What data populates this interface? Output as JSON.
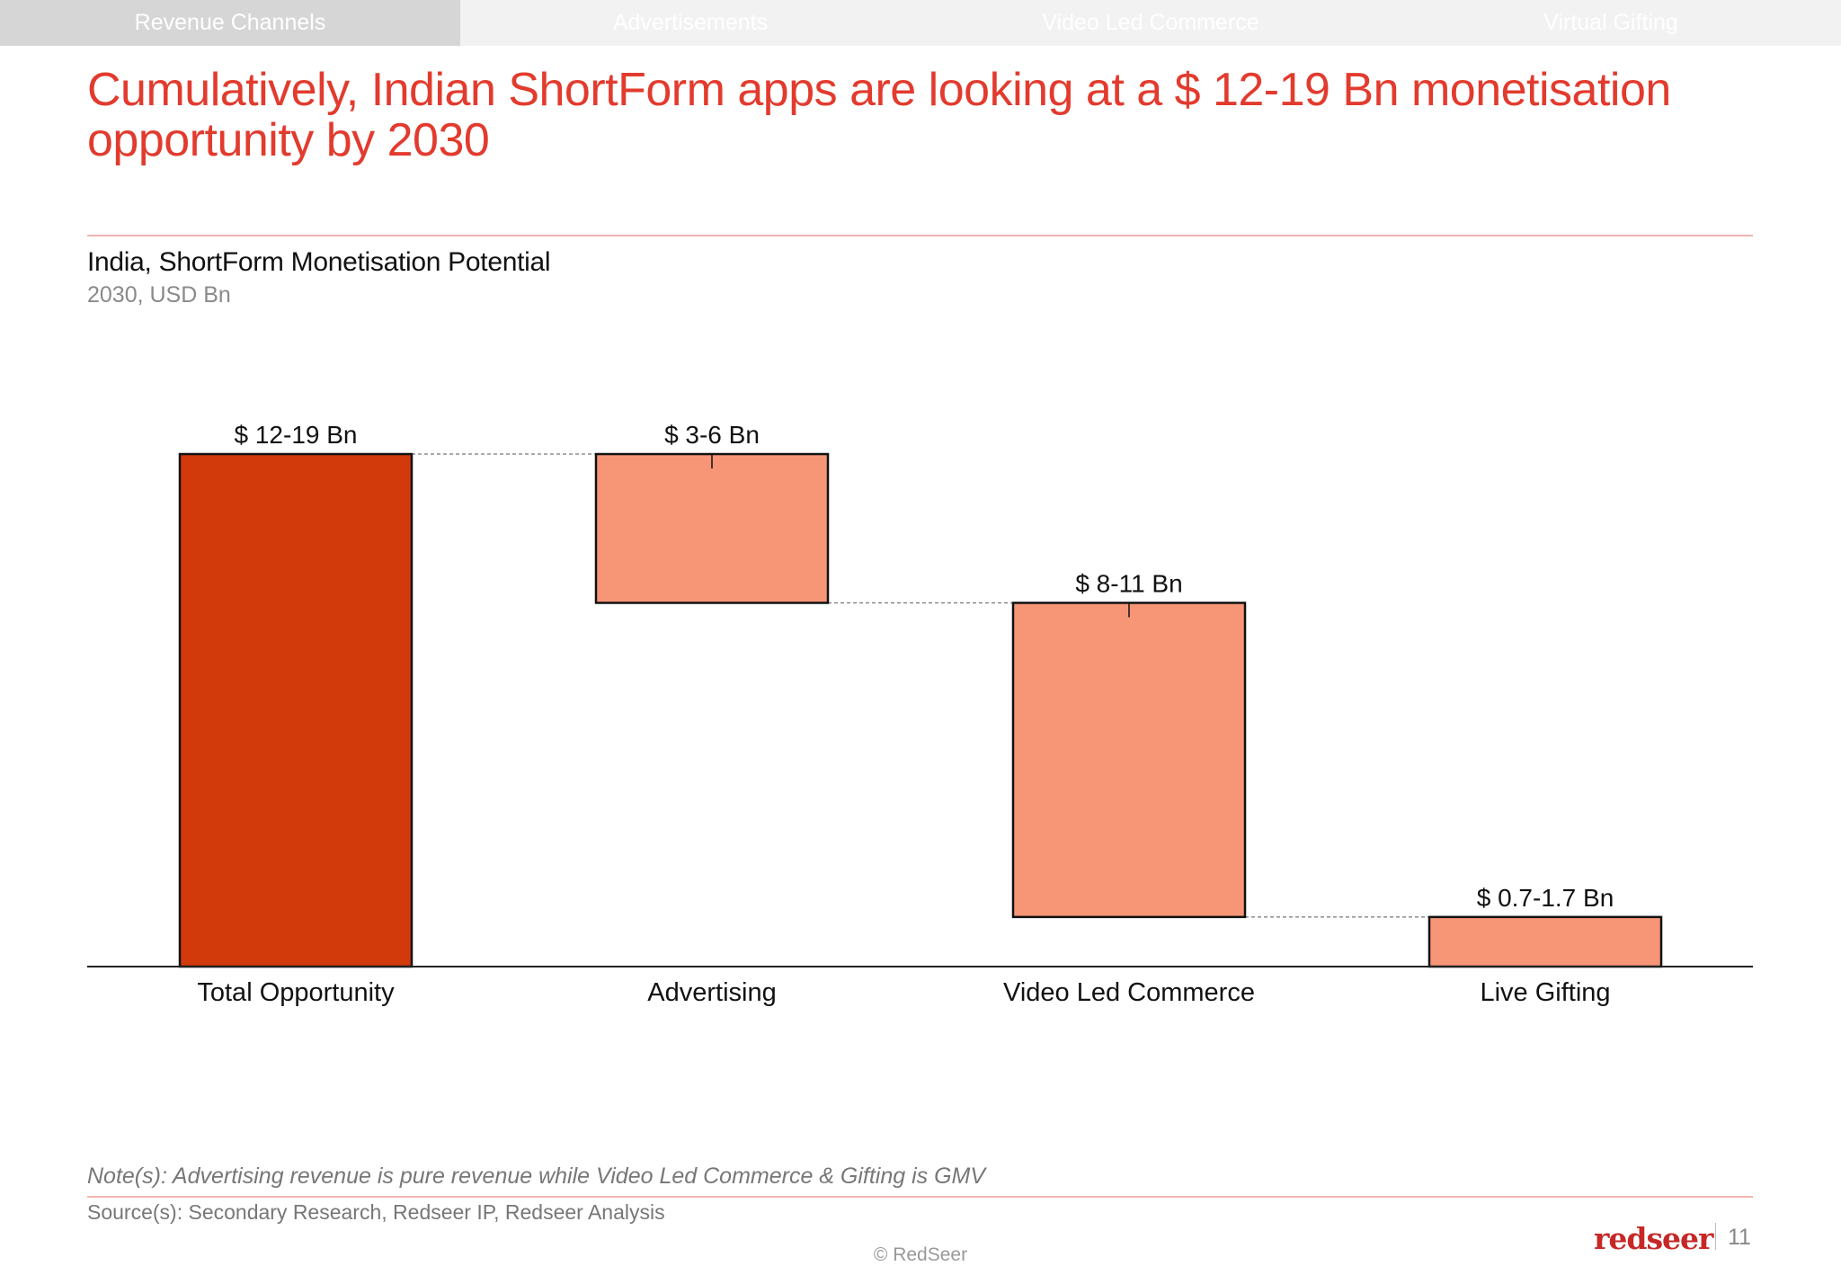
{
  "tabs": [
    "Revenue Channels",
    "Advertisements",
    "Video Led Commerce",
    "Virtual Gifting"
  ],
  "headline": "Cumulatively, Indian ShortForm apps are looking at a $ 12-19 Bn monetisation opportunity by 2030",
  "chart_data": {
    "type": "waterfall",
    "title": "India, ShortForm Monetisation Potential",
    "subtitle": "2030, USD Bn",
    "categories": [
      "Total Opportunity",
      "Advertising",
      "Video Led Commerce",
      "Live Gifting"
    ],
    "labels": [
      "$ 12-19 Bn",
      "$ 3-6 Bn",
      "$ 8-11 Bn",
      "$ 0.7-1.7 Bn"
    ],
    "values": [
      15.5,
      4.5,
      9.5,
      1.5
    ],
    "steps": [
      {
        "start": 0,
        "end": 15.5,
        "kind": "total"
      },
      {
        "start": 15.5,
        "end": 11.0,
        "kind": "component"
      },
      {
        "start": 11.0,
        "end": 1.5,
        "kind": "component"
      },
      {
        "start": 1.5,
        "end": 0,
        "kind": "component"
      }
    ],
    "ylim": [
      0,
      15.5
    ],
    "colors": {
      "total": "#d2390b",
      "component": "#f79677",
      "connector": "#777777",
      "axis": "#222222"
    }
  },
  "note": "Note(s): Advertising revenue is pure revenue while Video Led Commerce & Gifting is GMV",
  "source": "Source(s): Secondary Research, Redseer IP, Redseer Analysis",
  "copyright": "© RedSeer",
  "logo": "redseer",
  "page_number": "11"
}
